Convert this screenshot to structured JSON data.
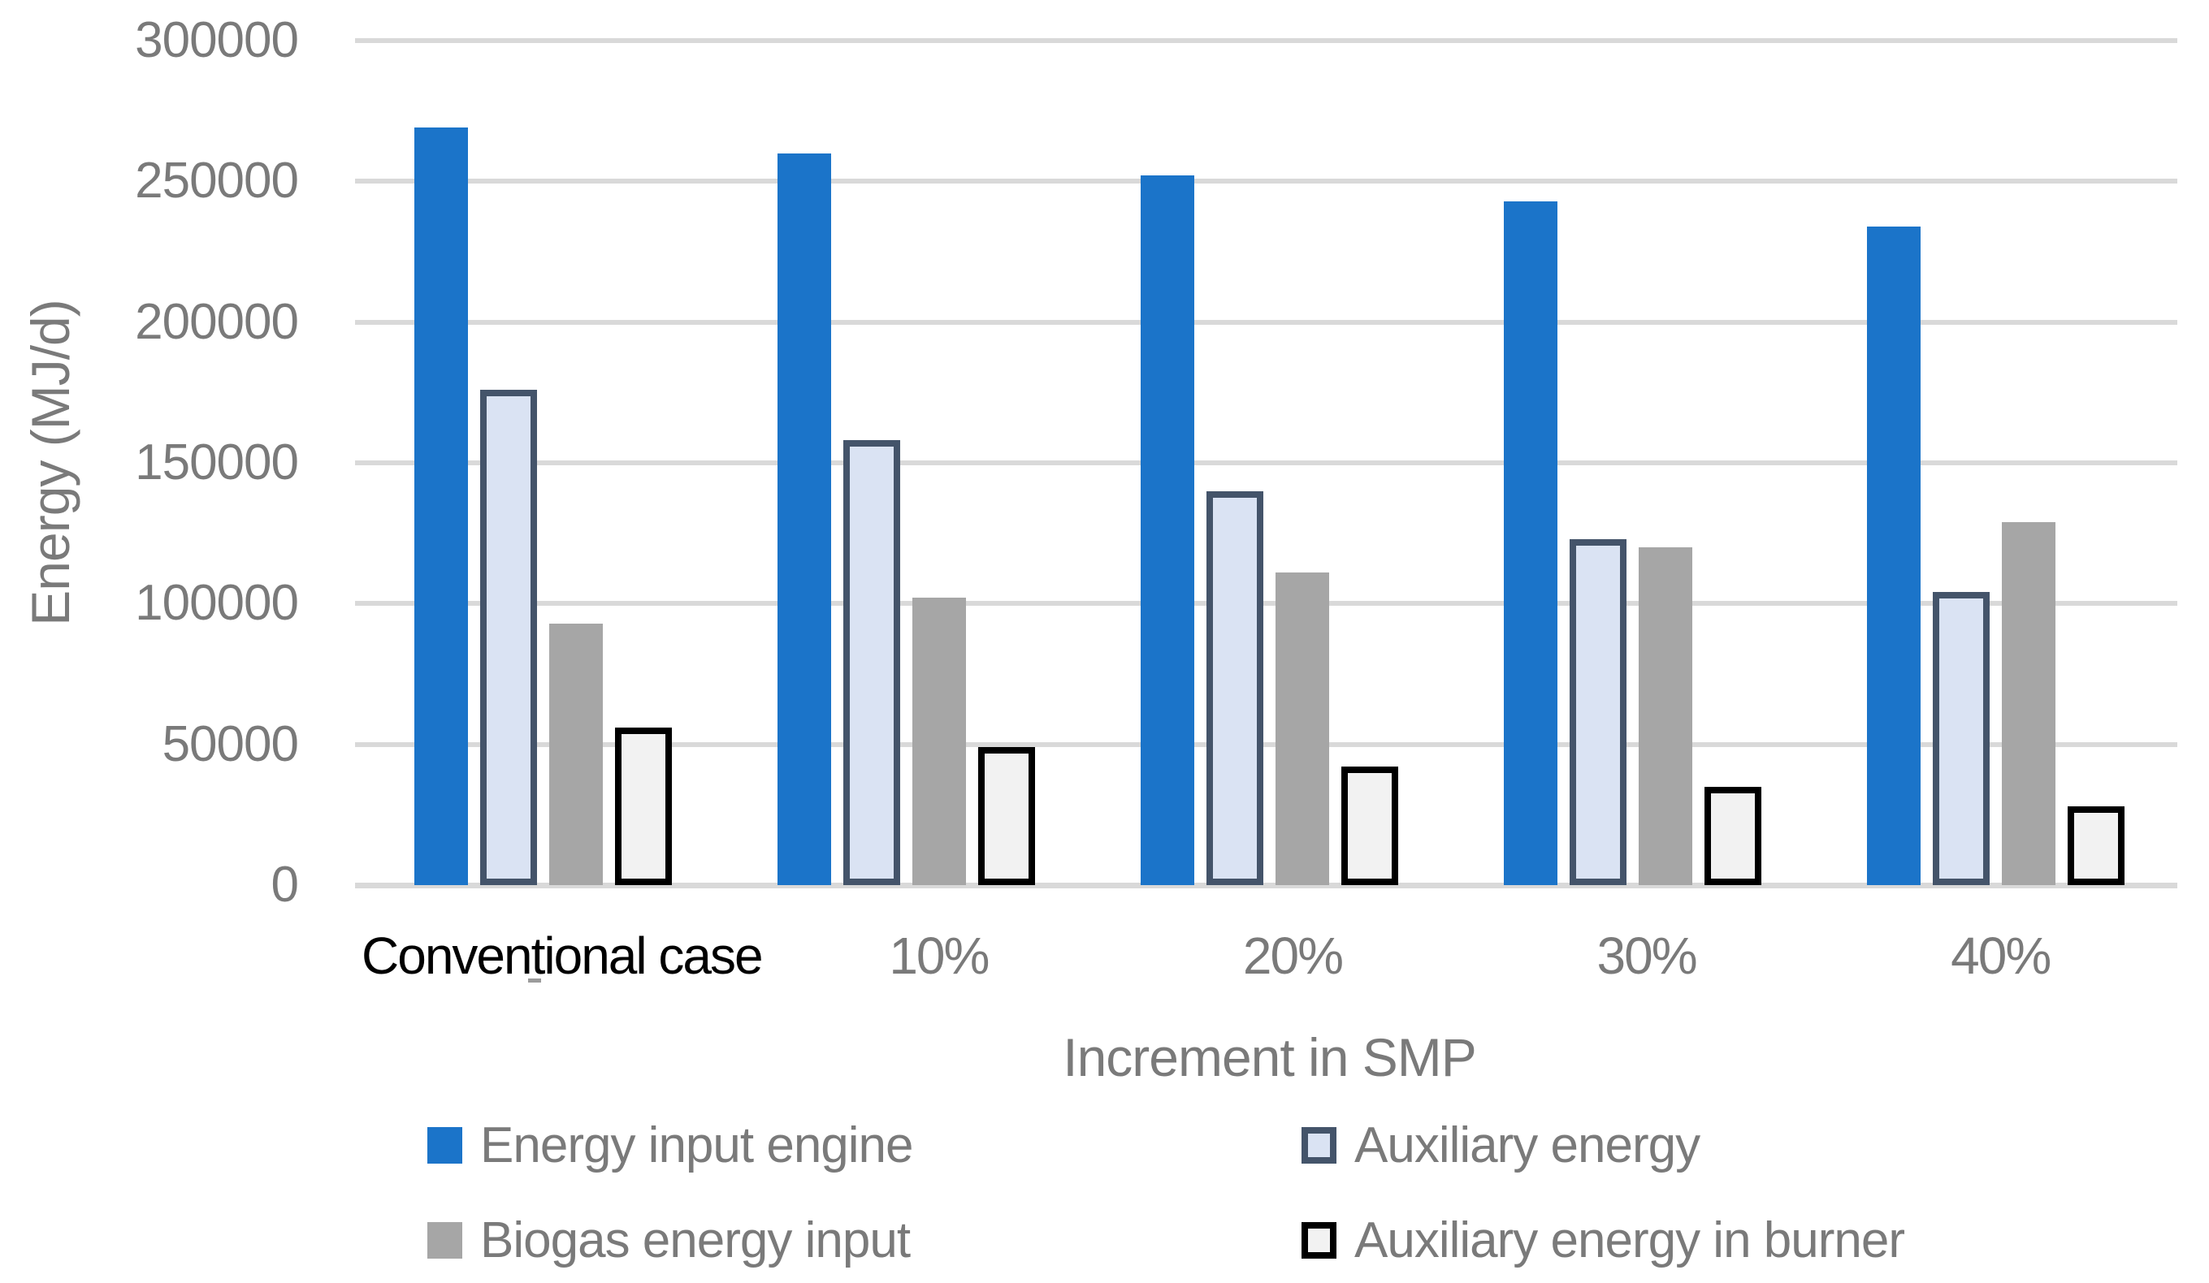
{
  "colors": {
    "background": "#FFFFFF",
    "gridline": "#D9D9D9",
    "axis_text": "#7A7A7A",
    "conventional_label_text": "#000000"
  },
  "chart_data": {
    "type": "bar",
    "title": "",
    "xlabel": "Increment in SMP",
    "ylabel": "Energy (MJ/d)",
    "ylim": [
      0,
      300000
    ],
    "yticks": [
      0,
      50000,
      100000,
      150000,
      200000,
      250000,
      300000
    ],
    "grid": "horizontal",
    "legend_position": "bottom",
    "categories": [
      "Conventional case",
      "10%",
      "20%",
      "30%",
      "40%"
    ],
    "category_label_colors": [
      "#000000",
      "#7A7A7A",
      "#7A7A7A",
      "#7A7A7A",
      "#7A7A7A"
    ],
    "series": [
      {
        "name": "Energy input engine",
        "color": "#1B74C9",
        "border_color": null,
        "values": [
          269000,
          260000,
          252000,
          243000,
          234000
        ]
      },
      {
        "name": "Auxiliary energy",
        "color": "#DAE3F3",
        "border_color": "#44546A",
        "values": [
          176000,
          158000,
          140000,
          123000,
          104000
        ]
      },
      {
        "name": "Biogas energy input",
        "color": "#A6A6A6",
        "border_color": null,
        "values": [
          93000,
          102000,
          111000,
          120000,
          129000
        ]
      },
      {
        "name": "Auxiliary energy in burner",
        "color": "#F2F2F2",
        "border_color": "#000000",
        "values": [
          56000,
          49000,
          42000,
          35000,
          28000
        ]
      }
    ]
  }
}
